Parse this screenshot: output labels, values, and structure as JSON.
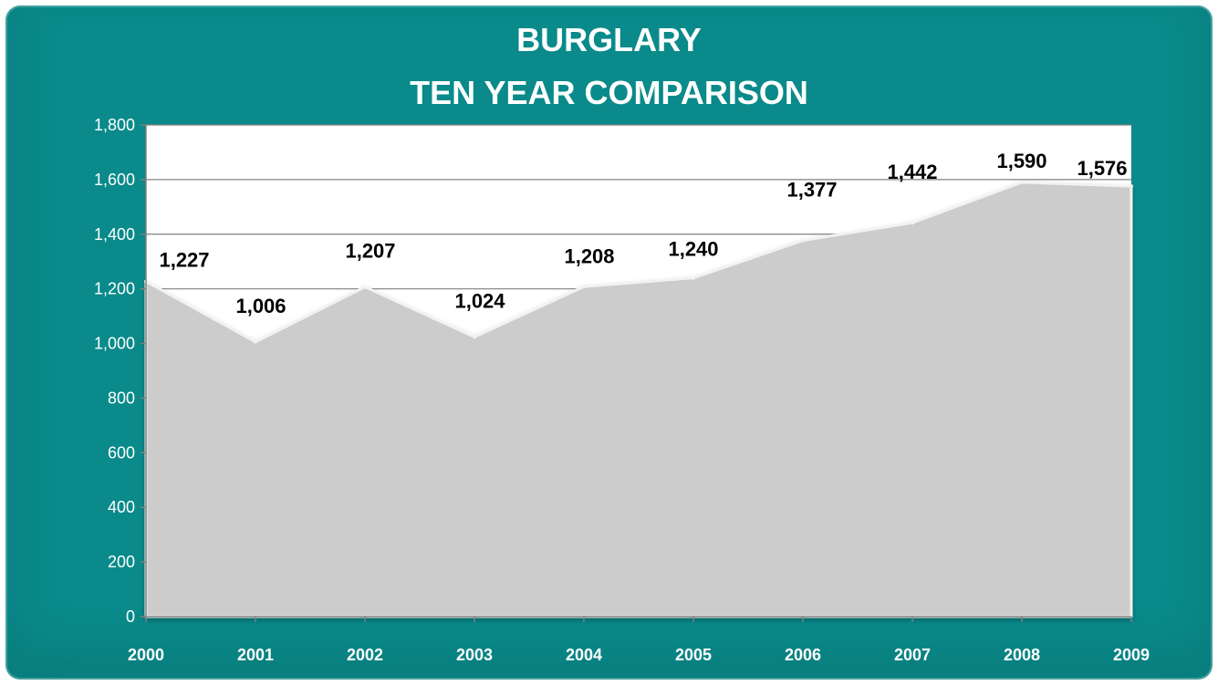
{
  "colors": {
    "frame_background": "#0a8a8a",
    "plot_background": "#ffffff",
    "area_fill": "#cccccc",
    "gridline": "#808080",
    "axis_text": "#ffffff",
    "data_label_text": "#000000"
  },
  "chart_data": {
    "type": "area",
    "title": [
      "BURGLARY",
      "TEN YEAR COMPARISON"
    ],
    "categories": [
      "2000",
      "2001",
      "2002",
      "2003",
      "2004",
      "2005",
      "2006",
      "2007",
      "2008",
      "2009"
    ],
    "values": [
      1227,
      1006,
      1207,
      1024,
      1208,
      1240,
      1377,
      1442,
      1590,
      1576
    ],
    "value_labels": [
      "1,227",
      "1,006",
      "1,207",
      "1,024",
      "1,208",
      "1,240",
      "1,377",
      "1,442",
      "1,590",
      "1,576"
    ],
    "y_ticks": [
      "0",
      "200",
      "400",
      "600",
      "800",
      "1,000",
      "1,200",
      "1,400",
      "1,600",
      "1,800"
    ],
    "y_tick_values": [
      0,
      200,
      400,
      600,
      800,
      1000,
      1200,
      1400,
      1600,
      1800
    ],
    "ylim": [
      0,
      1800
    ],
    "grid": true,
    "legend": "none",
    "xlabel": "",
    "ylabel": ""
  }
}
